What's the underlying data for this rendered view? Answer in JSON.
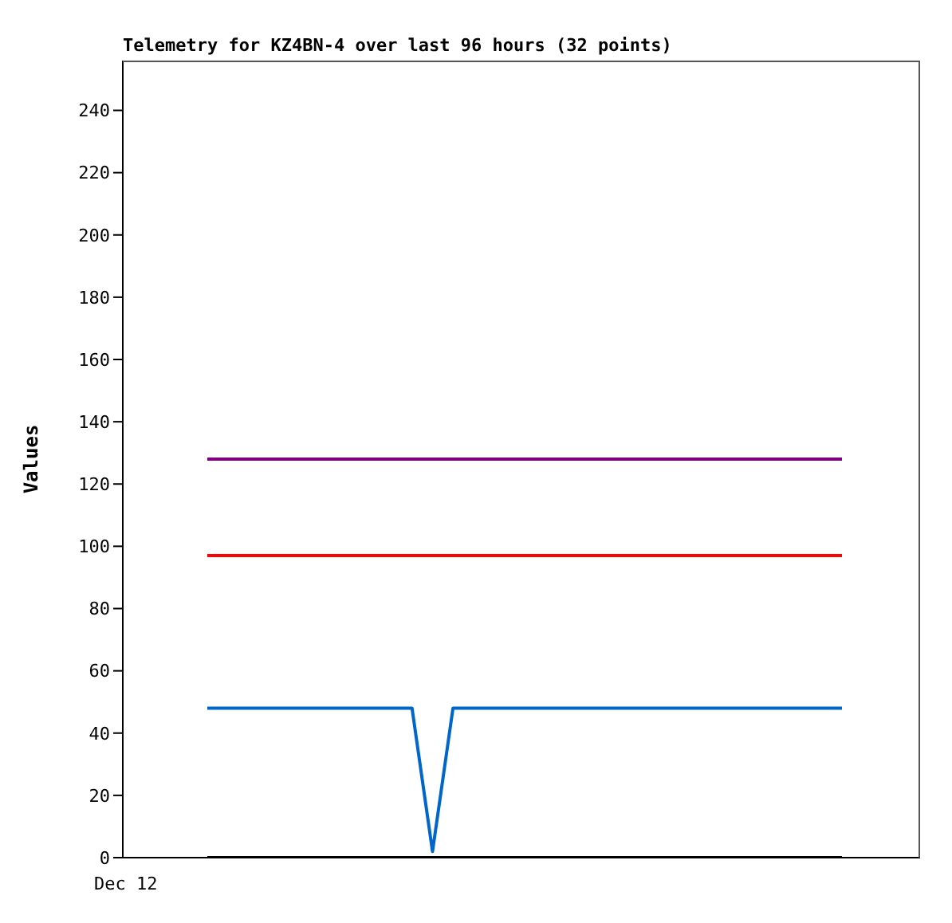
{
  "chart_data": {
    "type": "line",
    "title": "Telemetry for KZ4BN-4 over last 96 hours (32 points)",
    "ylabel": "Values",
    "categories": [
      null,
      null,
      null,
      null,
      null,
      null,
      null,
      null,
      null,
      null,
      null,
      null,
      null,
      null,
      null,
      null,
      null,
      null,
      null,
      null,
      null,
      null,
      null,
      null,
      null,
      null,
      null,
      null,
      null,
      null,
      null,
      null
    ],
    "series": [
      {
        "color": "#800080",
        "values": [
          128,
          128,
          128,
          128,
          128,
          128,
          128,
          128,
          128,
          128,
          128,
          128,
          128,
          128,
          128,
          128,
          128,
          128,
          128,
          128,
          128,
          128,
          128,
          128,
          128,
          128,
          128,
          128,
          128,
          128,
          128,
          128
        ]
      },
      {
        "color": "#ff0000",
        "values": [
          97,
          97,
          97,
          97,
          97,
          97,
          97,
          97,
          97,
          97,
          97,
          97,
          97,
          97,
          97,
          97,
          97,
          97,
          97,
          97,
          97,
          97,
          97,
          97,
          97,
          97,
          97,
          97,
          97,
          97,
          97,
          97
        ]
      },
      {
        "color": "#0066cc",
        "values": [
          48,
          48,
          48,
          48,
          48,
          48,
          48,
          48,
          48,
          48,
          48,
          2,
          48,
          48,
          48,
          48,
          48,
          48,
          48,
          48,
          48,
          48,
          48,
          48,
          48,
          48,
          48,
          48,
          48,
          48,
          48,
          48
        ]
      },
      {
        "color": "#000000",
        "values": [
          0,
          0,
          0,
          0,
          0,
          0,
          0,
          0,
          0,
          0,
          0,
          0,
          0,
          0,
          0,
          0,
          0,
          0,
          0,
          0,
          0,
          0,
          0,
          0,
          0,
          0,
          0,
          0,
          0,
          0,
          0,
          0
        ]
      }
    ],
    "annotations": [
      "Dec 12"
    ],
    "ylim": [
      0,
      256
    ],
    "yticks": [
      0,
      20,
      40,
      60,
      80,
      100,
      120,
      140,
      160,
      180,
      200,
      220,
      240
    ],
    "grid": false,
    "legend": false,
    "marker": "none",
    "line_style": "solid"
  }
}
